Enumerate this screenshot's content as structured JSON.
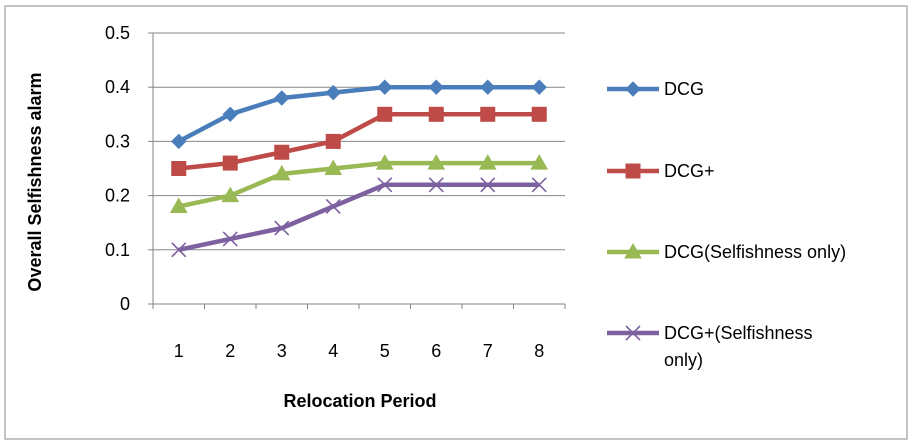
{
  "chart_data": {
    "type": "line",
    "title": "",
    "xlabel": "Relocation Period",
    "ylabel": "Overall Selfishness alarm",
    "categories": [
      "1",
      "2",
      "3",
      "4",
      "5",
      "6",
      "7",
      "8"
    ],
    "ylim": [
      0,
      0.5
    ],
    "yticks": [
      "0",
      "0.1",
      "0.2",
      "0.3",
      "0.4",
      "0.5"
    ],
    "grid": "horizontal",
    "legend_position": "right",
    "series": [
      {
        "name": "DCG",
        "values": [
          0.3,
          0.35,
          0.38,
          0.39,
          0.4,
          0.4,
          0.4,
          0.4
        ],
        "color": "#4A7EBB",
        "marker": "diamond"
      },
      {
        "name": "DCG+",
        "values": [
          0.25,
          0.26,
          0.28,
          0.3,
          0.35,
          0.35,
          0.35,
          0.35
        ],
        "color": "#BE4B48",
        "marker": "square"
      },
      {
        "name": "DCG(Selfishness only)",
        "values": [
          0.18,
          0.2,
          0.24,
          0.25,
          0.26,
          0.26,
          0.26,
          0.26
        ],
        "color": "#98B954",
        "marker": "triangle"
      },
      {
        "name": "DCG+(Selfishness only)",
        "values": [
          0.1,
          0.12,
          0.14,
          0.18,
          0.22,
          0.22,
          0.22,
          0.22
        ],
        "color": "#7D60A0",
        "marker": "x"
      }
    ]
  },
  "legend": {
    "line1": [
      "DCG"
    ],
    "line2": [
      "DCG+"
    ],
    "line3": [
      "DCG(Selfishness only)"
    ],
    "line4": [
      "DCG+(Selfishness",
      "only)"
    ]
  }
}
